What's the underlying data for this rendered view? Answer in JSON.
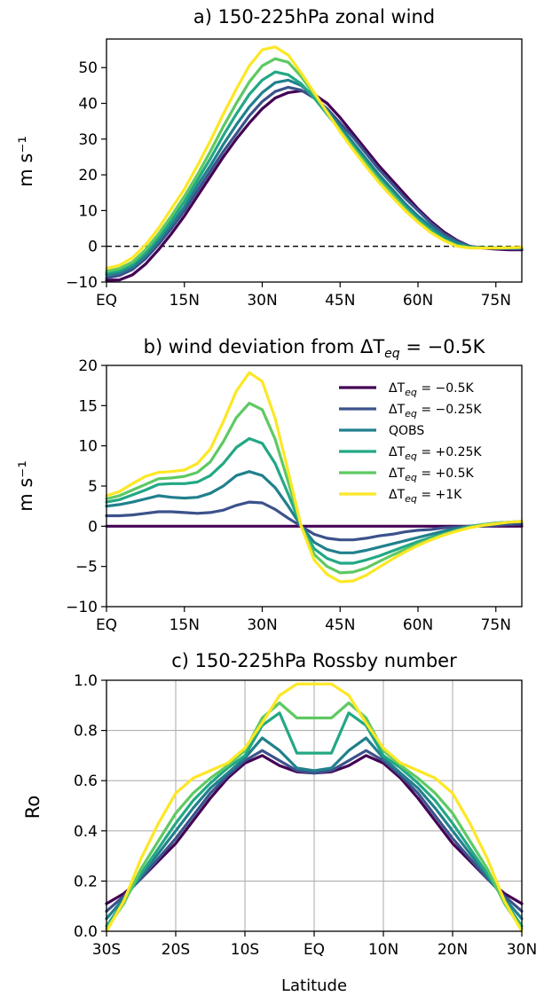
{
  "series_styles": [
    {
      "color": "#440154"
    },
    {
      "color": "#3b528b"
    },
    {
      "color": "#21808d"
    },
    {
      "color": "#22a884"
    },
    {
      "color": "#5ec962"
    },
    {
      "color": "#fde725"
    }
  ],
  "chart_data": [
    {
      "type": "line",
      "title": "a) 150-225hPa zonal wind",
      "ylabel": "m s⁻¹",
      "xlabel": "",
      "xlim": [
        0,
        80
      ],
      "ylim": [
        -10,
        58
      ],
      "xticks": [
        0,
        15,
        30,
        45,
        60,
        75
      ],
      "xtick_labels": [
        "EQ",
        "15N",
        "30N",
        "45N",
        "60N",
        "75N"
      ],
      "yticks": [
        -10,
        0,
        10,
        20,
        30,
        40,
        50
      ],
      "ytick_labels": [
        "−10",
        "0",
        "10",
        "20",
        "30",
        "40",
        "50"
      ],
      "zero_line": "dashed",
      "grid": false,
      "x": [
        0,
        2.5,
        5,
        7.5,
        10,
        12.5,
        15,
        17.5,
        20,
        22.5,
        25,
        27.5,
        30,
        32.5,
        35,
        37.5,
        40,
        42.5,
        45,
        47.5,
        50,
        52.5,
        55,
        57.5,
        60,
        62.5,
        65,
        67.5,
        70,
        72.5,
        75,
        77.5,
        80
      ],
      "series": [
        {
          "values": [
            -9.5,
            -9.4,
            -8.0,
            -5.0,
            -1.0,
            3.5,
            8.5,
            14.0,
            19.5,
            25.0,
            30.0,
            34.5,
            38.5,
            41.5,
            43.0,
            43.5,
            42.5,
            40.0,
            36.0,
            31.5,
            27.0,
            22.5,
            18.5,
            14.5,
            10.5,
            7.0,
            4.0,
            1.7,
            0.0,
            -0.5,
            -0.8,
            -1.0,
            -1.0
          ]
        },
        {
          "values": [
            -8.8,
            -8.2,
            -6.5,
            -3.5,
            0.5,
            5.0,
            10.0,
            15.5,
            21.0,
            26.5,
            31.5,
            36.5,
            40.5,
            43.3,
            44.5,
            43.7,
            41.5,
            38.5,
            34.5,
            30.5,
            26.0,
            21.5,
            17.5,
            13.5,
            10.0,
            6.5,
            3.5,
            1.5,
            0.0,
            -0.4,
            -0.6,
            -0.7,
            -0.7
          ]
        },
        {
          "values": [
            -8.0,
            -7.4,
            -5.8,
            -2.8,
            1.5,
            6.0,
            11.0,
            17.0,
            22.5,
            28.5,
            34.0,
            39.0,
            43.0,
            45.8,
            46.5,
            45.0,
            42.0,
            38.0,
            33.5,
            29.0,
            24.5,
            20.0,
            16.0,
            12.0,
            8.5,
            5.5,
            2.8,
            1.0,
            -0.2,
            -0.4,
            -0.5,
            -0.5,
            -0.5
          ]
        },
        {
          "values": [
            -7.5,
            -6.8,
            -5.0,
            -1.8,
            2.5,
            7.2,
            12.5,
            18.5,
            24.5,
            31.0,
            37.0,
            42.5,
            46.5,
            48.8,
            48.0,
            45.5,
            41.5,
            37.0,
            32.5,
            28.0,
            23.5,
            19.0,
            15.0,
            11.0,
            7.5,
            4.5,
            2.0,
            0.3,
            -0.3,
            -0.4,
            -0.5,
            -0.4,
            -0.4
          ]
        },
        {
          "values": [
            -7.0,
            -6.2,
            -4.4,
            -1.0,
            3.4,
            8.5,
            14.0,
            20.0,
            26.5,
            33.5,
            40.0,
            46.0,
            50.5,
            52.5,
            51.5,
            47.5,
            42.5,
            37.5,
            32.5,
            27.5,
            23.0,
            18.5,
            14.5,
            10.5,
            7.0,
            4.0,
            1.8,
            0.2,
            -0.3,
            -0.4,
            -0.4,
            -0.4,
            -0.3
          ]
        },
        {
          "values": [
            -6.2,
            -5.3,
            -3.2,
            0.4,
            5.0,
            10.5,
            16.0,
            22.5,
            29.5,
            37.0,
            44.0,
            50.5,
            55.0,
            55.8,
            53.5,
            48.5,
            43.0,
            37.5,
            32.0,
            27.0,
            22.3,
            17.8,
            13.8,
            10.0,
            6.7,
            3.8,
            1.6,
            0.0,
            -0.5,
            -0.5,
            -0.5,
            -0.4,
            -0.3
          ]
        }
      ]
    },
    {
      "type": "line",
      "title": "b) wind deviation from ΔTeq = −0.5K",
      "title_parts": {
        "prefix": "b) wind deviation from ",
        "delta": "ΔT",
        "sub": "eq",
        "suffix": " = −0.5K"
      },
      "ylabel": "m s⁻¹",
      "xlabel": "",
      "xlim": [
        0,
        80
      ],
      "ylim": [
        -10,
        20
      ],
      "xticks": [
        0,
        15,
        30,
        45,
        60,
        75
      ],
      "xtick_labels": [
        "EQ",
        "15N",
        "30N",
        "45N",
        "60N",
        "75N"
      ],
      "yticks": [
        -10,
        -5,
        0,
        5,
        10,
        15,
        20
      ],
      "ytick_labels": [
        "−10",
        "−5",
        "0",
        "5",
        "10",
        "15",
        "20"
      ],
      "grid": false,
      "legend": "upper right",
      "x": [
        0,
        2.5,
        5,
        7.5,
        10,
        12.5,
        15,
        17.5,
        20,
        22.5,
        25,
        27.5,
        30,
        32.5,
        35,
        37.5,
        40,
        42.5,
        45,
        47.5,
        50,
        52.5,
        55,
        57.5,
        60,
        62.5,
        65,
        67.5,
        70,
        72.5,
        75,
        77.5,
        80
      ],
      "series": [
        {
          "name": "ΔTeq = −0.5K",
          "legend_parts": {
            "delta": "ΔT",
            "sub": "eq",
            "value": " = −0.5K"
          },
          "values": [
            0,
            0,
            0,
            0,
            0,
            0,
            0,
            0,
            0,
            0,
            0,
            0,
            0,
            0,
            0,
            0,
            0,
            0,
            0,
            0,
            0,
            0,
            0,
            0,
            0,
            0,
            0,
            0,
            0,
            0,
            0,
            0,
            0
          ]
        },
        {
          "name": "ΔTeq = −0.25K",
          "legend_parts": {
            "delta": "ΔT",
            "sub": "eq",
            "value": " = −0.25K"
          },
          "values": [
            1.3,
            1.3,
            1.4,
            1.6,
            1.8,
            1.8,
            1.7,
            1.6,
            1.7,
            2.0,
            2.6,
            3.0,
            2.9,
            2.1,
            1.0,
            0.0,
            -1.0,
            -1.5,
            -1.7,
            -1.7,
            -1.5,
            -1.2,
            -1.0,
            -0.7,
            -0.5,
            -0.4,
            -0.2,
            -0.1,
            0.0,
            0.0,
            0.1,
            0.2,
            0.3
          ]
        },
        {
          "name": "QOBS",
          "values": [
            2.5,
            2.7,
            3.0,
            3.4,
            3.8,
            3.6,
            3.5,
            3.6,
            4.1,
            5.0,
            6.3,
            6.8,
            6.3,
            4.8,
            2.5,
            0.0,
            -2.0,
            -2.9,
            -3.3,
            -3.3,
            -3.0,
            -2.6,
            -2.2,
            -1.8,
            -1.4,
            -1.0,
            -0.6,
            -0.3,
            0.0,
            0.2,
            0.4,
            0.5,
            0.6
          ]
        },
        {
          "name": "ΔTeq = +0.25K",
          "legend_parts": {
            "delta": "ΔT",
            "sub": "eq",
            "value": " = +0.25K"
          },
          "values": [
            3.0,
            3.3,
            3.9,
            4.5,
            5.2,
            5.3,
            5.3,
            5.5,
            6.3,
            7.8,
            9.8,
            10.9,
            10.3,
            7.8,
            4.0,
            0.0,
            -2.8,
            -4.0,
            -4.6,
            -4.6,
            -4.2,
            -3.7,
            -3.1,
            -2.5,
            -1.9,
            -1.4,
            -0.9,
            -0.5,
            -0.1,
            0.2,
            0.4,
            0.5,
            0.6
          ]
        },
        {
          "name": "ΔTeq = +0.5K",
          "legend_parts": {
            "delta": "ΔT",
            "sub": "eq",
            "value": " = +0.5K"
          },
          "values": [
            3.4,
            3.8,
            4.5,
            5.2,
            5.9,
            6.0,
            6.2,
            6.7,
            8.0,
            10.5,
            13.5,
            15.3,
            14.5,
            10.8,
            5.5,
            0.0,
            -3.5,
            -5.0,
            -5.8,
            -5.7,
            -5.2,
            -4.4,
            -3.6,
            -2.9,
            -2.2,
            -1.6,
            -1.0,
            -0.5,
            -0.1,
            0.2,
            0.4,
            0.5,
            0.6
          ]
        },
        {
          "name": "ΔTeq = +1K",
          "legend_parts": {
            "delta": "ΔT",
            "sub": "eq",
            "value": " = +1K"
          },
          "values": [
            3.8,
            4.3,
            5.3,
            6.2,
            6.7,
            6.8,
            7.0,
            7.8,
            9.6,
            13.0,
            16.8,
            19.1,
            18.0,
            13.4,
            6.8,
            0.0,
            -4.2,
            -6.0,
            -6.9,
            -6.8,
            -6.1,
            -5.1,
            -4.1,
            -3.2,
            -2.4,
            -1.7,
            -1.1,
            -0.6,
            -0.2,
            0.1,
            0.3,
            0.5,
            0.6
          ]
        }
      ]
    },
    {
      "type": "line",
      "title": "c) 150-225hPa Rossby number",
      "ylabel": "Ro",
      "xlabel": "Latitude",
      "xlim": [
        -30,
        30
      ],
      "ylim": [
        0,
        1
      ],
      "xticks": [
        -30,
        -20,
        -10,
        0,
        10,
        20,
        30
      ],
      "xtick_labels": [
        "30S",
        "20S",
        "10S",
        "EQ",
        "10N",
        "20N",
        "30N"
      ],
      "yticks": [
        0,
        0.2,
        0.4,
        0.6,
        0.8,
        1.0
      ],
      "ytick_labels": [
        "0.0",
        "0.2",
        "0.4",
        "0.6",
        "0.8",
        "1.0"
      ],
      "grid": true,
      "x": [
        -30,
        -27.5,
        -25,
        -22.5,
        -20,
        -17.5,
        -15,
        -12.5,
        -10,
        -7.5,
        -5,
        -2.5,
        0,
        2.5,
        5,
        7.5,
        10,
        12.5,
        15,
        17.5,
        20,
        22.5,
        25,
        27.5,
        30
      ],
      "series": [
        {
          "values": [
            0.11,
            0.15,
            0.21,
            0.28,
            0.35,
            0.44,
            0.53,
            0.61,
            0.67,
            0.7,
            0.66,
            0.635,
            0.63,
            0.635,
            0.66,
            0.7,
            0.67,
            0.61,
            0.53,
            0.44,
            0.35,
            0.28,
            0.21,
            0.15,
            0.11
          ]
        },
        {
          "values": [
            0.08,
            0.14,
            0.21,
            0.29,
            0.37,
            0.46,
            0.55,
            0.62,
            0.68,
            0.72,
            0.68,
            0.64,
            0.63,
            0.64,
            0.68,
            0.72,
            0.68,
            0.62,
            0.55,
            0.46,
            0.37,
            0.29,
            0.21,
            0.14,
            0.08
          ]
        },
        {
          "values": [
            0.05,
            0.13,
            0.22,
            0.31,
            0.4,
            0.49,
            0.57,
            0.63,
            0.69,
            0.77,
            0.72,
            0.65,
            0.64,
            0.65,
            0.72,
            0.77,
            0.69,
            0.63,
            0.57,
            0.49,
            0.4,
            0.31,
            0.22,
            0.13,
            0.05
          ]
        },
        {
          "values": [
            0.02,
            0.12,
            0.23,
            0.33,
            0.43,
            0.52,
            0.59,
            0.65,
            0.7,
            0.82,
            0.87,
            0.71,
            0.71,
            0.71,
            0.87,
            0.82,
            0.7,
            0.65,
            0.59,
            0.52,
            0.43,
            0.33,
            0.23,
            0.12,
            0.02
          ]
        },
        {
          "values": [
            0.01,
            0.11,
            0.25,
            0.36,
            0.47,
            0.55,
            0.61,
            0.66,
            0.72,
            0.85,
            0.91,
            0.85,
            0.85,
            0.85,
            0.91,
            0.85,
            0.72,
            0.66,
            0.61,
            0.55,
            0.47,
            0.36,
            0.25,
            0.11,
            0.01
          ]
        },
        {
          "values": [
            0.0,
            0.12,
            0.29,
            0.43,
            0.55,
            0.61,
            0.64,
            0.67,
            0.73,
            0.83,
            0.94,
            0.985,
            0.985,
            0.985,
            0.94,
            0.83,
            0.73,
            0.67,
            0.64,
            0.61,
            0.55,
            0.43,
            0.29,
            0.12,
            0.0
          ]
        }
      ]
    }
  ]
}
